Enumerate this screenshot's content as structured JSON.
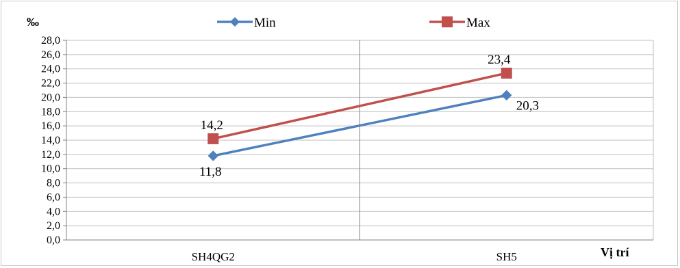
{
  "chart_data": {
    "type": "line",
    "categories": [
      "SH4QG2",
      "SH5"
    ],
    "series": [
      {
        "name": "Min",
        "values": [
          11.8,
          20.3
        ],
        "labels": [
          "11,8",
          "20,3"
        ],
        "color": "#4f81bd",
        "marker": "diamond"
      },
      {
        "name": "Max",
        "values": [
          14.2,
          23.4
        ],
        "labels": [
          "14,2",
          "23,4"
        ],
        "color": "#c0504d",
        "marker": "square"
      }
    ],
    "ylabel": "‰",
    "xlabel": "Vị trí",
    "ylim": [
      0,
      28
    ],
    "ytick_step": 2,
    "ytick_labels": [
      "0,0",
      "2,0",
      "4,0",
      "6,0",
      "8,0",
      "10,0",
      "12,0",
      "14,0",
      "16,0",
      "18,0",
      "20,0",
      "22,0",
      "24,0",
      "26,0",
      "28,0"
    ],
    "grid": true,
    "legend_position": "top"
  }
}
